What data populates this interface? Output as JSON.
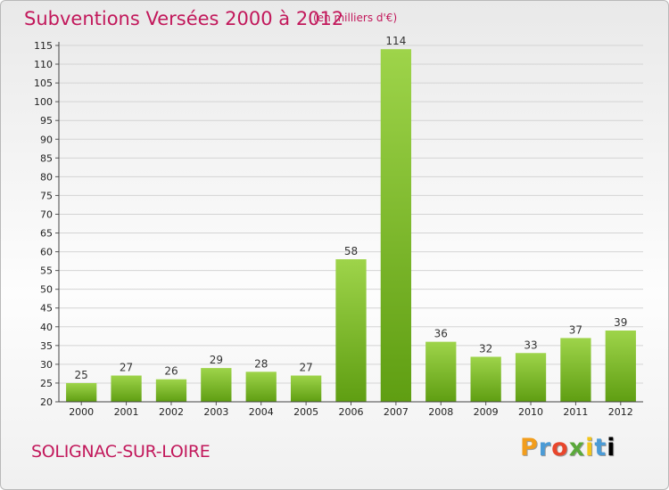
{
  "header": {
    "title": "Subventions Versées 2000 à 2012",
    "subtitle": "(en milliers d'€)"
  },
  "footer": {
    "city": "SOLIGNAC-SUR-LOIRE",
    "brand_letters": [
      "P",
      "r",
      "o",
      "x",
      "i",
      "t",
      "i"
    ]
  },
  "colors": {
    "title": "#c2185b",
    "bar_light": "#9ed44a",
    "bar_dark": "#5f9e12",
    "grid": "#d4d4d4"
  },
  "chart_data": {
    "type": "bar",
    "title": "Subventions Versées 2000 à 2012",
    "subtitle": "(en milliers d'€)",
    "xlabel": "",
    "ylabel": "",
    "categories": [
      "2000",
      "2001",
      "2002",
      "2003",
      "2004",
      "2005",
      "2006",
      "2007",
      "2008",
      "2009",
      "2010",
      "2011",
      "2012"
    ],
    "values": [
      25,
      27,
      26,
      29,
      28,
      27,
      58,
      114,
      36,
      32,
      33,
      37,
      39
    ],
    "ylim": [
      20,
      115
    ],
    "yticks": [
      20,
      25,
      30,
      35,
      40,
      45,
      50,
      55,
      60,
      65,
      70,
      75,
      80,
      85,
      90,
      95,
      100,
      105,
      110,
      115
    ],
    "grid": true,
    "legend": "none"
  }
}
